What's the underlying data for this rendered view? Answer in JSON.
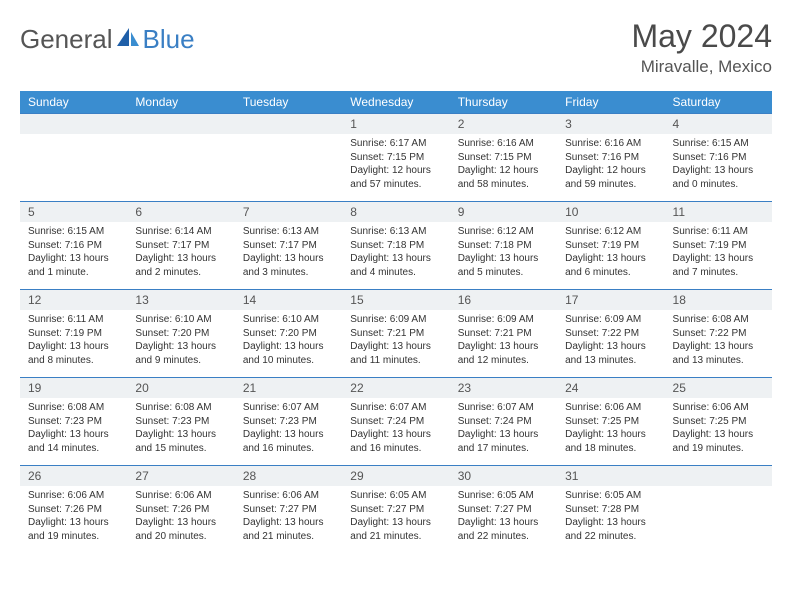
{
  "logo": {
    "general": "General",
    "blue": "Blue"
  },
  "title": "May 2024",
  "location": "Miravalle, Mexico",
  "colors": {
    "header_bg": "#3a8dd0",
    "header_text": "#ffffff",
    "row_border": "#3a7fc4",
    "daynum_bg": "#eef1f3",
    "text": "#333333",
    "logo_blue": "#3a7fc4",
    "logo_gray": "#555555"
  },
  "dow": [
    "Sunday",
    "Monday",
    "Tuesday",
    "Wednesday",
    "Thursday",
    "Friday",
    "Saturday"
  ],
  "weeks": [
    [
      null,
      null,
      null,
      {
        "n": "1",
        "sr": "Sunrise: 6:17 AM",
        "ss": "Sunset: 7:15 PM",
        "dl": "Daylight: 12 hours and 57 minutes."
      },
      {
        "n": "2",
        "sr": "Sunrise: 6:16 AM",
        "ss": "Sunset: 7:15 PM",
        "dl": "Daylight: 12 hours and 58 minutes."
      },
      {
        "n": "3",
        "sr": "Sunrise: 6:16 AM",
        "ss": "Sunset: 7:16 PM",
        "dl": "Daylight: 12 hours and 59 minutes."
      },
      {
        "n": "4",
        "sr": "Sunrise: 6:15 AM",
        "ss": "Sunset: 7:16 PM",
        "dl": "Daylight: 13 hours and 0 minutes."
      }
    ],
    [
      {
        "n": "5",
        "sr": "Sunrise: 6:15 AM",
        "ss": "Sunset: 7:16 PM",
        "dl": "Daylight: 13 hours and 1 minute."
      },
      {
        "n": "6",
        "sr": "Sunrise: 6:14 AM",
        "ss": "Sunset: 7:17 PM",
        "dl": "Daylight: 13 hours and 2 minutes."
      },
      {
        "n": "7",
        "sr": "Sunrise: 6:13 AM",
        "ss": "Sunset: 7:17 PM",
        "dl": "Daylight: 13 hours and 3 minutes."
      },
      {
        "n": "8",
        "sr": "Sunrise: 6:13 AM",
        "ss": "Sunset: 7:18 PM",
        "dl": "Daylight: 13 hours and 4 minutes."
      },
      {
        "n": "9",
        "sr": "Sunrise: 6:12 AM",
        "ss": "Sunset: 7:18 PM",
        "dl": "Daylight: 13 hours and 5 minutes."
      },
      {
        "n": "10",
        "sr": "Sunrise: 6:12 AM",
        "ss": "Sunset: 7:19 PM",
        "dl": "Daylight: 13 hours and 6 minutes."
      },
      {
        "n": "11",
        "sr": "Sunrise: 6:11 AM",
        "ss": "Sunset: 7:19 PM",
        "dl": "Daylight: 13 hours and 7 minutes."
      }
    ],
    [
      {
        "n": "12",
        "sr": "Sunrise: 6:11 AM",
        "ss": "Sunset: 7:19 PM",
        "dl": "Daylight: 13 hours and 8 minutes."
      },
      {
        "n": "13",
        "sr": "Sunrise: 6:10 AM",
        "ss": "Sunset: 7:20 PM",
        "dl": "Daylight: 13 hours and 9 minutes."
      },
      {
        "n": "14",
        "sr": "Sunrise: 6:10 AM",
        "ss": "Sunset: 7:20 PM",
        "dl": "Daylight: 13 hours and 10 minutes."
      },
      {
        "n": "15",
        "sr": "Sunrise: 6:09 AM",
        "ss": "Sunset: 7:21 PM",
        "dl": "Daylight: 13 hours and 11 minutes."
      },
      {
        "n": "16",
        "sr": "Sunrise: 6:09 AM",
        "ss": "Sunset: 7:21 PM",
        "dl": "Daylight: 13 hours and 12 minutes."
      },
      {
        "n": "17",
        "sr": "Sunrise: 6:09 AM",
        "ss": "Sunset: 7:22 PM",
        "dl": "Daylight: 13 hours and 13 minutes."
      },
      {
        "n": "18",
        "sr": "Sunrise: 6:08 AM",
        "ss": "Sunset: 7:22 PM",
        "dl": "Daylight: 13 hours and 13 minutes."
      }
    ],
    [
      {
        "n": "19",
        "sr": "Sunrise: 6:08 AM",
        "ss": "Sunset: 7:23 PM",
        "dl": "Daylight: 13 hours and 14 minutes."
      },
      {
        "n": "20",
        "sr": "Sunrise: 6:08 AM",
        "ss": "Sunset: 7:23 PM",
        "dl": "Daylight: 13 hours and 15 minutes."
      },
      {
        "n": "21",
        "sr": "Sunrise: 6:07 AM",
        "ss": "Sunset: 7:23 PM",
        "dl": "Daylight: 13 hours and 16 minutes."
      },
      {
        "n": "22",
        "sr": "Sunrise: 6:07 AM",
        "ss": "Sunset: 7:24 PM",
        "dl": "Daylight: 13 hours and 16 minutes."
      },
      {
        "n": "23",
        "sr": "Sunrise: 6:07 AM",
        "ss": "Sunset: 7:24 PM",
        "dl": "Daylight: 13 hours and 17 minutes."
      },
      {
        "n": "24",
        "sr": "Sunrise: 6:06 AM",
        "ss": "Sunset: 7:25 PM",
        "dl": "Daylight: 13 hours and 18 minutes."
      },
      {
        "n": "25",
        "sr": "Sunrise: 6:06 AM",
        "ss": "Sunset: 7:25 PM",
        "dl": "Daylight: 13 hours and 19 minutes."
      }
    ],
    [
      {
        "n": "26",
        "sr": "Sunrise: 6:06 AM",
        "ss": "Sunset: 7:26 PM",
        "dl": "Daylight: 13 hours and 19 minutes."
      },
      {
        "n": "27",
        "sr": "Sunrise: 6:06 AM",
        "ss": "Sunset: 7:26 PM",
        "dl": "Daylight: 13 hours and 20 minutes."
      },
      {
        "n": "28",
        "sr": "Sunrise: 6:06 AM",
        "ss": "Sunset: 7:27 PM",
        "dl": "Daylight: 13 hours and 21 minutes."
      },
      {
        "n": "29",
        "sr": "Sunrise: 6:05 AM",
        "ss": "Sunset: 7:27 PM",
        "dl": "Daylight: 13 hours and 21 minutes."
      },
      {
        "n": "30",
        "sr": "Sunrise: 6:05 AM",
        "ss": "Sunset: 7:27 PM",
        "dl": "Daylight: 13 hours and 22 minutes."
      },
      {
        "n": "31",
        "sr": "Sunrise: 6:05 AM",
        "ss": "Sunset: 7:28 PM",
        "dl": "Daylight: 13 hours and 22 minutes."
      },
      null
    ]
  ]
}
